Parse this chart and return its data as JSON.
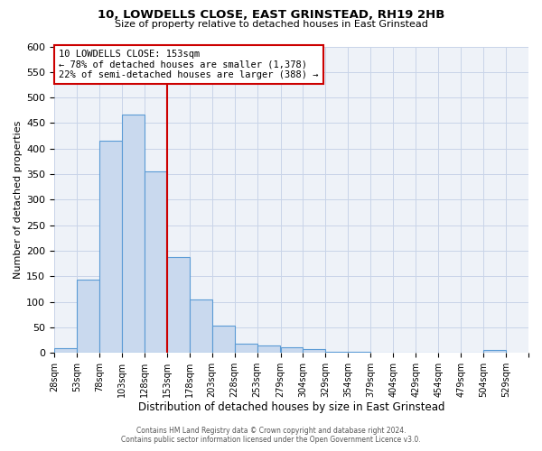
{
  "title": "10, LOWDELLS CLOSE, EAST GRINSTEAD, RH19 2HB",
  "subtitle": "Size of property relative to detached houses in East Grinstead",
  "xlabel": "Distribution of detached houses by size in East Grinstead",
  "ylabel": "Number of detached properties",
  "bin_edges": [
    28,
    53,
    78,
    103,
    128,
    153,
    178,
    203,
    228,
    253,
    279,
    304,
    329,
    354,
    379,
    404,
    429,
    454,
    479,
    504,
    529
  ],
  "bin_labels": [
    "28sqm",
    "53sqm",
    "78sqm",
    "103sqm",
    "128sqm",
    "153sqm",
    "178sqm",
    "203sqm",
    "228sqm",
    "253sqm",
    "279sqm",
    "304sqm",
    "329sqm",
    "354sqm",
    "379sqm",
    "404sqm",
    "429sqm",
    "454sqm",
    "479sqm",
    "504sqm",
    "529sqm"
  ],
  "counts": [
    10,
    143,
    415,
    467,
    355,
    187,
    104,
    54,
    18,
    14,
    11,
    7,
    3,
    2,
    1,
    0,
    0,
    0,
    0,
    5
  ],
  "bar_facecolor": "#c9d9ee",
  "bar_edgecolor": "#5b9bd5",
  "property_size": 153,
  "vline_color": "#cc0000",
  "box_text_line1": "10 LOWDELLS CLOSE: 153sqm",
  "box_text_line2": "← 78% of detached houses are smaller (1,378)",
  "box_text_line3": "22% of semi-detached houses are larger (388) →",
  "box_color": "#cc0000",
  "grid_color": "#c8d4e8",
  "bg_color": "#eef2f8",
  "footer1": "Contains HM Land Registry data © Crown copyright and database right 2024.",
  "footer2": "Contains public sector information licensed under the Open Government Licence v3.0.",
  "ylim": [
    0,
    600
  ],
  "yticks": [
    0,
    50,
    100,
    150,
    200,
    250,
    300,
    350,
    400,
    450,
    500,
    550,
    600
  ]
}
